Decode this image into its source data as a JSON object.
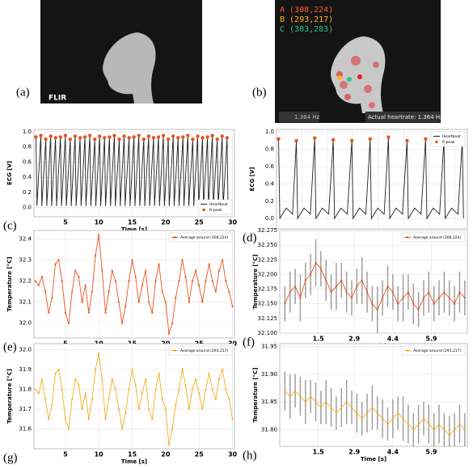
{
  "images": [
    {
      "label": "(a)",
      "logo": "FLIR"
    },
    {
      "label": "(b)",
      "points": [
        {
          "text": "A (308,224)",
          "color": "#ff5a2a"
        },
        {
          "text": "B (293,217)",
          "color": "#ffb020"
        },
        {
          "text": "C (303,283)",
          "color": "#2ec28a"
        }
      ],
      "frequency": "1.364 Hz",
      "caption": "Actual heartrate: 1.364 Hz"
    }
  ],
  "chart_data": [
    {
      "type": "line",
      "panel_label": "(c)",
      "xlabel": "Time [s]",
      "ylabel": "ECG [V]",
      "grid": true,
      "legend": "lower right",
      "xlim": [
        0.3,
        30.3
      ],
      "ylim": [
        -0.12,
        1.03
      ],
      "xticks": [
        5,
        10,
        15,
        20,
        25,
        30
      ],
      "yticks": [
        {
          "value": 0,
          "label": "0.0"
        },
        0.2,
        0.4,
        0.6,
        0.8,
        {
          "value": 1,
          "label": "1.0"
        }
      ],
      "series": [
        {
          "name": "Heartbeat",
          "color": "#222222",
          "x": [
            0.6,
            0.75,
            1.33,
            1.48,
            2.07,
            2.22,
            2.8,
            2.95,
            3.53,
            3.68,
            4.27,
            4.42,
            5.0,
            5.15,
            5.73,
            5.88,
            6.46,
            6.61,
            7.2,
            7.35,
            7.93,
            8.08,
            8.66,
            8.81,
            9.4,
            9.55,
            10.13,
            10.28,
            10.86,
            11.01,
            11.6,
            11.75,
            12.33,
            12.48,
            13.06,
            13.21,
            13.79,
            13.94,
            14.53,
            14.68,
            15.26,
            15.41,
            15.99,
            16.14,
            16.73,
            16.88,
            17.46,
            17.61,
            18.19,
            18.34,
            18.93,
            19.08,
            19.66,
            19.81,
            20.39,
            20.54,
            21.13,
            21.28,
            21.86,
            22.01,
            22.59,
            22.74,
            23.32,
            23.47,
            24.06,
            24.21,
            24.79,
            24.94,
            25.52,
            25.67,
            26.26,
            26.41,
            26.99,
            27.14,
            27.72,
            27.87,
            28.46,
            28.61,
            29.19,
            29.34
          ],
          "values": [
            0.93,
            0.02,
            0.95,
            0.02,
            0.9,
            0.02,
            0.94,
            0.02,
            0.92,
            0.02,
            0.93,
            0.02,
            0.95,
            0.02,
            0.9,
            0.02,
            0.94,
            0.02,
            0.92,
            0.02,
            0.93,
            0.02,
            0.95,
            0.02,
            0.9,
            0.02,
            0.94,
            0.02,
            0.92,
            0.02,
            0.93,
            0.02,
            0.95,
            0.02,
            0.9,
            0.02,
            0.94,
            0.02,
            0.92,
            0.02,
            0.93,
            0.02,
            0.95,
            0.02,
            0.9,
            0.02,
            0.94,
            0.02,
            0.92,
            0.02,
            0.93,
            0.02,
            0.95,
            0.02,
            0.9,
            0.02,
            0.94,
            0.02,
            0.92,
            0.02,
            0.93,
            0.02,
            0.95,
            0.02,
            0.9,
            0.02,
            0.94,
            0.02,
            0.92,
            0.02,
            0.93,
            0.02,
            0.95,
            0.02,
            0.9,
            0.02,
            0.94,
            0.02,
            0.92,
            0.02
          ]
        },
        {
          "name": "R-peak",
          "type": "scatter",
          "color": "#e8541e",
          "x": [
            0.6,
            1.33,
            2.07,
            2.8,
            3.53,
            4.27,
            5.0,
            5.73,
            6.46,
            7.2,
            7.93,
            8.66,
            9.4,
            10.13,
            10.86,
            11.6,
            12.33,
            13.06,
            13.79,
            14.53,
            15.26,
            15.99,
            16.73,
            17.46,
            18.19,
            18.93,
            19.66,
            20.39,
            21.13,
            21.86,
            22.59,
            23.32,
            24.06,
            24.79,
            25.52,
            26.26,
            26.99,
            27.72,
            28.46,
            29.19
          ],
          "values": [
            0.93,
            0.95,
            0.9,
            0.94,
            0.92,
            0.93,
            0.95,
            0.9,
            0.94,
            0.92,
            0.93,
            0.95,
            0.9,
            0.94,
            0.92,
            0.93,
            0.95,
            0.9,
            0.94,
            0.92,
            0.93,
            0.95,
            0.9,
            0.94,
            0.92,
            0.93,
            0.95,
            0.9,
            0.94,
            0.92,
            0.93,
            0.95,
            0.9,
            0.94,
            0.92,
            0.93,
            0.95,
            0.9,
            0.94,
            0.92
          ]
        }
      ]
    },
    {
      "type": "line",
      "panel_label": "(d)",
      "xlabel": "Time [s]",
      "ylabel": "ECG [V]",
      "grid": true,
      "legend": "upper right",
      "xlim": [
        0,
        7.5
      ],
      "ylim": [
        -0.12,
        1.03
      ],
      "xticks": [
        1,
        2,
        3,
        4,
        5,
        6,
        7
      ],
      "yticks": [
        {
          "value": 0,
          "label": "0.0"
        },
        0.2,
        0.4,
        0.6,
        0.8,
        {
          "value": 1,
          "label": "1.0"
        }
      ],
      "series": [
        {
          "name": "Heartbeat",
          "color": "#222222",
          "x": [
            0.08,
            0.13,
            0.38,
            0.63,
            0.78,
            0.83,
            1.08,
            1.33,
            1.5,
            1.55,
            1.8,
            2.05,
            2.23,
            2.28,
            2.53,
            2.78,
            2.96,
            3.01,
            3.26,
            3.51,
            3.68,
            3.73,
            3.98,
            4.23,
            4.4,
            4.45,
            4.7,
            4.95,
            5.13,
            5.18,
            5.43,
            5.68,
            5.86,
            5.91,
            6.16,
            6.41,
            6.58,
            6.63,
            6.88,
            7.13,
            7.3,
            7.35
          ],
          "values": [
            0.92,
            0.0,
            0.12,
            0.05,
            0.9,
            0.0,
            0.12,
            0.05,
            0.93,
            0.0,
            0.12,
            0.05,
            0.91,
            0.0,
            0.12,
            0.05,
            0.9,
            0.0,
            0.12,
            0.05,
            0.92,
            0.0,
            0.12,
            0.05,
            0.94,
            0.0,
            0.12,
            0.05,
            0.9,
            0.0,
            0.12,
            0.05,
            0.92,
            0.0,
            0.12,
            0.05,
            0.91,
            0.0,
            0.12,
            0.05,
            0.9,
            0.0
          ]
        },
        {
          "name": "R-peak",
          "type": "scatter",
          "color": "#e8541e",
          "x": [
            0.08,
            0.78,
            1.5,
            2.23,
            2.96,
            3.68,
            4.4,
            5.13,
            5.86,
            6.58,
            7.3
          ],
          "values": [
            0.92,
            0.9,
            0.93,
            0.91,
            0.9,
            0.92,
            0.94,
            0.9,
            0.92,
            0.91,
            0.9
          ]
        }
      ]
    },
    {
      "type": "line",
      "panel_label": "(e)",
      "xlabel": "Time [s]",
      "ylabel": "Temperature [°C]",
      "grid": true,
      "legend": "upper right",
      "markers": true,
      "xlim": [
        0.3,
        30.3
      ],
      "ylim": [
        31.93,
        32.44
      ],
      "xticks": [
        5,
        10,
        15,
        20,
        25,
        30
      ],
      "yticks": [
        {
          "value": 32,
          "label": "32.0"
        },
        32.1,
        32.2,
        32.3,
        32.4
      ],
      "x": [
        0.5,
        1,
        1.5,
        2,
        2.5,
        3,
        3.5,
        4,
        4.5,
        5,
        5.5,
        6,
        6.5,
        7,
        7.5,
        8,
        8.5,
        9,
        9.5,
        10,
        10.5,
        11,
        11.5,
        12,
        12.5,
        13,
        13.5,
        14,
        14.5,
        15,
        15.5,
        16,
        16.5,
        17,
        17.5,
        18,
        18.5,
        19,
        19.5,
        20,
        20.5,
        21,
        21.5,
        22,
        22.5,
        23,
        23.5,
        24,
        24.5,
        25,
        25.5,
        26,
        26.5,
        27,
        27.5,
        28,
        28.5,
        29,
        29.5,
        30
      ],
      "series": [
        {
          "name": "Average around (308,224)",
          "color": "#e8541e",
          "values": [
            32.2,
            32.18,
            32.22,
            32.15,
            32.05,
            32.12,
            32.28,
            32.3,
            32.2,
            32.05,
            32.0,
            32.15,
            32.25,
            32.22,
            32.1,
            32.18,
            32.05,
            32.15,
            32.32,
            32.42,
            32.25,
            32.05,
            32.15,
            32.25,
            32.2,
            32.1,
            32.0,
            32.08,
            32.2,
            32.3,
            32.22,
            32.1,
            32.18,
            32.25,
            32.1,
            32.05,
            32.2,
            32.28,
            32.15,
            32.1,
            31.95,
            32.0,
            32.12,
            32.2,
            32.3,
            32.22,
            32.1,
            32.2,
            32.25,
            32.18,
            32.1,
            32.2,
            32.28,
            32.2,
            32.15,
            32.25,
            32.3,
            32.2,
            32.15,
            32.08
          ]
        }
      ]
    },
    {
      "type": "line",
      "panel_label": "(f)",
      "xlabel": "Time [s]",
      "ylabel": "Temperature [°C]",
      "grid": true,
      "legend": "upper right",
      "markers": true,
      "xlim": [
        0,
        7.3
      ],
      "ylim": [
        32.1,
        32.275
      ],
      "xticks": [
        1.5,
        2.9,
        4.4,
        5.9
      ],
      "yticks": [
        {
          "value": 32.1,
          "label": "32.100"
        },
        {
          "value": 32.125,
          "label": "32.125"
        },
        {
          "value": 32.15,
          "label": "32.150"
        },
        {
          "value": 32.175,
          "label": "32.175"
        },
        {
          "value": 32.2,
          "label": "32.200"
        },
        {
          "value": 32.225,
          "label": "32.225"
        },
        {
          "value": 32.25,
          "label": "32.250"
        },
        {
          "value": 32.275,
          "label": "32.275"
        }
      ],
      "x": [
        0.2,
        0.4,
        0.6,
        0.8,
        1,
        1.2,
        1.4,
        1.6,
        1.8,
        2,
        2.2,
        2.4,
        2.6,
        2.8,
        3,
        3.2,
        3.4,
        3.6,
        3.8,
        4,
        4.2,
        4.4,
        4.6,
        4.8,
        5,
        5.2,
        5.4,
        5.6,
        5.8,
        6,
        6.2,
        6.4,
        6.6,
        6.8,
        7,
        7.2
      ],
      "series": [
        {
          "name": "Average around (308,224)",
          "color": "#e8541e",
          "values": [
            32.15,
            32.17,
            32.18,
            32.16,
            32.19,
            32.2,
            32.22,
            32.21,
            32.19,
            32.17,
            32.18,
            32.19,
            32.17,
            32.16,
            32.18,
            32.19,
            32.17,
            32.15,
            32.14,
            32.16,
            32.18,
            32.17,
            32.15,
            32.16,
            32.17,
            32.15,
            32.14,
            32.16,
            32.17,
            32.15,
            32.16,
            32.17,
            32.16,
            32.15,
            32.17,
            32.16
          ],
          "errors": [
            0.03,
            0.035,
            0.03,
            0.04,
            0.03,
            0.035,
            0.04,
            0.03,
            0.035,
            0.03,
            0.04,
            0.03,
            0.035,
            0.03,
            0.03,
            0.04,
            0.035,
            0.03,
            0.04,
            0.03,
            0.035,
            0.03,
            0.03,
            0.04,
            0.03,
            0.035,
            0.03,
            0.03,
            0.035,
            0.03,
            0.03,
            0.035,
            0.03,
            0.03,
            0.035,
            0.03
          ]
        }
      ]
    },
    {
      "type": "line",
      "panel_label": "(g)",
      "xlabel": "Time [s]",
      "ylabel": "Temperature [°C]",
      "grid": true,
      "legend": "upper right",
      "markers": true,
      "xlim": [
        0.3,
        30.3
      ],
      "ylim": [
        31.5,
        32.03
      ],
      "xticks": [
        5,
        10,
        15,
        20,
        25,
        30
      ],
      "yticks": [
        31.6,
        31.7,
        31.8,
        31.9,
        {
          "value": 32,
          "label": "32.0"
        }
      ],
      "x": [
        0.5,
        1,
        1.5,
        2,
        2.5,
        3,
        3.5,
        4,
        4.5,
        5,
        5.5,
        6,
        6.5,
        7,
        7.5,
        8,
        8.5,
        9,
        9.5,
        10,
        10.5,
        11,
        11.5,
        12,
        12.5,
        13,
        13.5,
        14,
        14.5,
        15,
        15.5,
        16,
        16.5,
        17,
        17.5,
        18,
        18.5,
        19,
        19.5,
        20,
        20.5,
        21,
        21.5,
        22,
        22.5,
        23,
        23.5,
        24,
        24.5,
        25,
        25.5,
        26,
        26.5,
        27,
        27.5,
        28,
        28.5,
        29,
        29.5,
        30
      ],
      "series": [
        {
          "name": "Average around (293,217)",
          "color": "#f0b020",
          "values": [
            31.8,
            31.78,
            31.85,
            31.75,
            31.65,
            31.72,
            31.88,
            31.9,
            31.8,
            31.65,
            31.6,
            31.75,
            31.85,
            31.82,
            31.7,
            31.78,
            31.65,
            31.75,
            31.9,
            31.98,
            31.85,
            31.65,
            31.75,
            31.85,
            31.8,
            31.7,
            31.6,
            31.68,
            31.8,
            31.9,
            31.82,
            31.7,
            31.78,
            31.85,
            31.7,
            31.65,
            31.8,
            31.88,
            31.75,
            31.7,
            31.52,
            31.6,
            31.72,
            31.8,
            31.9,
            31.82,
            31.7,
            31.8,
            31.85,
            31.78,
            31.7,
            31.8,
            31.88,
            31.8,
            31.75,
            31.85,
            31.9,
            31.8,
            31.75,
            31.65
          ]
        }
      ]
    },
    {
      "type": "line",
      "panel_label": "(h)",
      "xlabel": "Time [s]",
      "ylabel": "Temperature [°C]",
      "grid": true,
      "legend": "upper right",
      "markers": true,
      "xlim": [
        0,
        7.3
      ],
      "ylim": [
        31.77,
        31.955
      ],
      "xticks": [
        1.5,
        2.9,
        4.4,
        5.9
      ],
      "yticks": [
        {
          "value": 31.8,
          "label": "31.80"
        },
        {
          "value": 31.85,
          "label": "31.85"
        },
        {
          "value": 31.9,
          "label": "31.90"
        },
        {
          "value": 31.95,
          "label": "31.95"
        }
      ],
      "x": [
        0.2,
        0.4,
        0.6,
        0.8,
        1,
        1.2,
        1.4,
        1.6,
        1.8,
        2,
        2.2,
        2.4,
        2.6,
        2.8,
        3,
        3.2,
        3.4,
        3.6,
        3.8,
        4,
        4.2,
        4.4,
        4.6,
        4.8,
        5,
        5.2,
        5.4,
        5.6,
        5.8,
        6,
        6.2,
        6.4,
        6.6,
        6.8,
        7,
        7.2
      ],
      "series": [
        {
          "name": "Average around (293,217)",
          "color": "#f0b020",
          "values": [
            31.87,
            31.86,
            31.87,
            31.86,
            31.85,
            31.86,
            31.85,
            31.84,
            31.85,
            31.84,
            31.83,
            31.84,
            31.85,
            31.84,
            31.83,
            31.82,
            31.83,
            31.84,
            31.83,
            31.82,
            31.81,
            31.82,
            31.83,
            31.82,
            31.81,
            31.8,
            31.81,
            31.82,
            31.81,
            31.8,
            31.81,
            31.8,
            31.79,
            31.8,
            31.81,
            31.8
          ],
          "errors": [
            0.035,
            0.04,
            0.03,
            0.035,
            0.04,
            0.03,
            0.035,
            0.03,
            0.04,
            0.035,
            0.03,
            0.035,
            0.04,
            0.03,
            0.035,
            0.03,
            0.035,
            0.04,
            0.03,
            0.035,
            0.03,
            0.035,
            0.03,
            0.04,
            0.035,
            0.03,
            0.035,
            0.03,
            0.035,
            0.03,
            0.035,
            0.03,
            0.035,
            0.03,
            0.035,
            0.03
          ]
        }
      ]
    }
  ]
}
